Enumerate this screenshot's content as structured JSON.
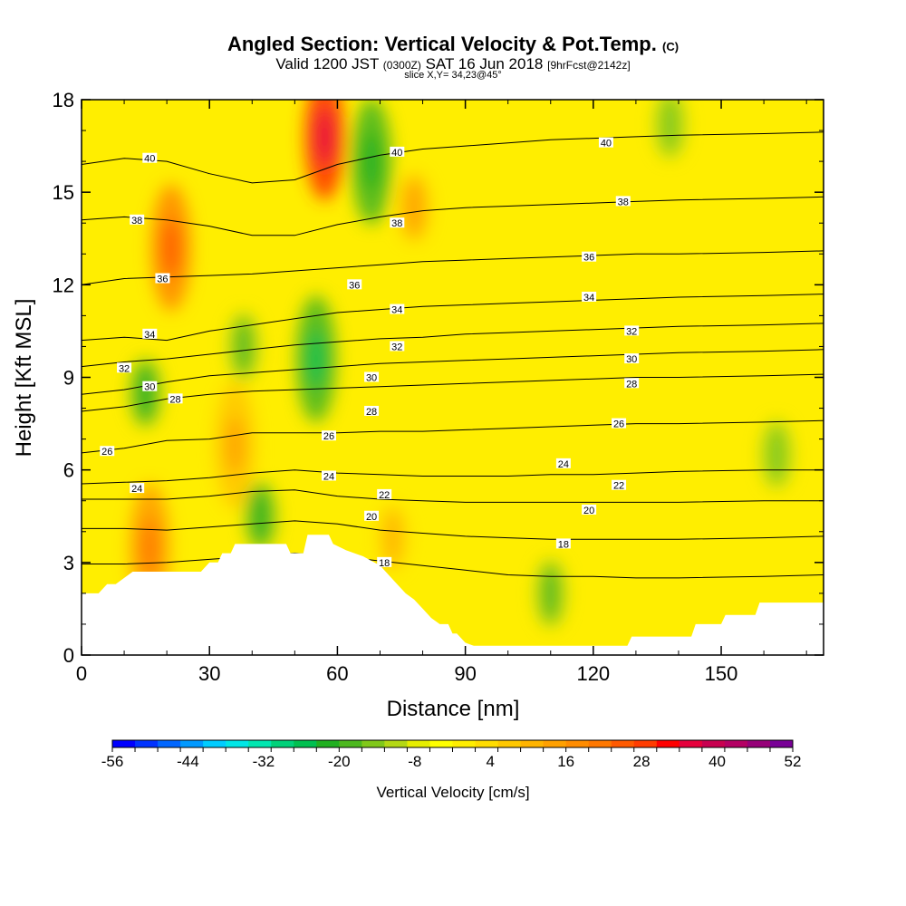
{
  "header": {
    "title_main": "Angled Section: Vertical Velocity & Pot.Temp.",
    "title_unit": "(C)",
    "valid_prefix": "Valid 1200 JST",
    "valid_utc": "(0300Z)",
    "valid_date": "SAT 16 Jun 2018",
    "forecast": "[9hrFcst@2142z]",
    "slice": "slice X,Y= 34,23@45°"
  },
  "chart_data": {
    "type": "heatmap",
    "subtype": "vertical cross-section with isentrope contours",
    "xlabel": "Distance [nm]",
    "ylabel": "Height [Kft MSL]",
    "xlim": [
      0,
      174
    ],
    "ylim": [
      0,
      18
    ],
    "x_ticks": [
      0,
      30,
      60,
      90,
      120,
      150
    ],
    "y_ticks": [
      0,
      3,
      6,
      9,
      12,
      15,
      18
    ],
    "colorbar": {
      "label": "Vertical Velocity [cm/s]",
      "min": -56,
      "max": 52,
      "step": 4,
      "tick_labels": [
        -56,
        -44,
        -32,
        -20,
        -8,
        4,
        16,
        28,
        40,
        52
      ],
      "colors": [
        "#0000ff",
        "#0033ff",
        "#0066ff",
        "#0099ff",
        "#00ccff",
        "#00e6e6",
        "#00e6b0",
        "#00d27a",
        "#00c050",
        "#20b020",
        "#4cb81e",
        "#80c81a",
        "#b4d814",
        "#e6ee00",
        "#ffff00",
        "#ffee00",
        "#ffdc00",
        "#ffc800",
        "#ffb400",
        "#ffa000",
        "#ff8c00",
        "#ff7800",
        "#ff5a00",
        "#ff3c00",
        "#ff0000",
        "#e6003c",
        "#c80050",
        "#b40064",
        "#960078",
        "#780096"
      ]
    },
    "terrain_profile": {
      "x": [
        0,
        4,
        6,
        8,
        10,
        12,
        28,
        30,
        32,
        33,
        35,
        36,
        38,
        40,
        48,
        49,
        52,
        53,
        58,
        59,
        62,
        66,
        70,
        72,
        74,
        76,
        78,
        80,
        82,
        84,
        86,
        87,
        88,
        90,
        92,
        128,
        129,
        143,
        144,
        150,
        151,
        158,
        159,
        174
      ],
      "height": [
        2.0,
        2.0,
        2.3,
        2.3,
        2.5,
        2.7,
        2.7,
        3.0,
        3.0,
        3.3,
        3.3,
        3.6,
        3.6,
        3.6,
        3.6,
        3.3,
        3.3,
        3.9,
        3.9,
        3.6,
        3.4,
        3.2,
        2.9,
        2.6,
        2.3,
        2.0,
        1.8,
        1.5,
        1.2,
        1.0,
        1.0,
        0.7,
        0.7,
        0.4,
        0.3,
        0.3,
        0.6,
        0.6,
        1.0,
        1.0,
        1.3,
        1.3,
        1.7,
        1.7
      ]
    },
    "velocity_features": [
      {
        "x": 57,
        "z": 16.8,
        "value": 36
      },
      {
        "x": 21,
        "z": 13.2,
        "value": 24
      },
      {
        "x": 16,
        "z": 3.5,
        "value": 20
      },
      {
        "x": 36,
        "z": 6.8,
        "value": 14
      },
      {
        "x": 55,
        "z": 9.6,
        "value": -16
      },
      {
        "x": 68,
        "z": 16.0,
        "value": -14
      },
      {
        "x": 15,
        "z": 8.5,
        "value": -12
      },
      {
        "x": 38,
        "z": 10.0,
        "value": -8
      },
      {
        "x": 42,
        "z": 4.5,
        "value": -12
      },
      {
        "x": 110,
        "z": 2.0,
        "value": -8
      },
      {
        "x": 163,
        "z": 6.5,
        "value": -6
      },
      {
        "x": 138,
        "z": 17.2,
        "value": -6
      },
      {
        "x": 73,
        "z": 3.8,
        "value": 10
      },
      {
        "x": 78,
        "z": 14.5,
        "value": 12
      }
    ],
    "isentropes": [
      {
        "value": 18,
        "z": [
          2.95,
          2.95,
          3.0,
          3.1,
          3.2,
          3.3,
          3.2,
          3.05,
          2.9,
          2.75,
          2.6,
          2.55,
          2.55,
          2.5,
          2.5,
          2.55,
          2.6
        ]
      },
      {
        "value": 20,
        "z": [
          4.1,
          4.1,
          4.05,
          4.15,
          4.25,
          4.35,
          4.25,
          4.05,
          3.95,
          3.85,
          3.8,
          3.75,
          3.75,
          3.75,
          3.75,
          3.8,
          3.85
        ]
      },
      {
        "value": 22,
        "z": [
          5.05,
          5.05,
          5.05,
          5.15,
          5.3,
          5.35,
          5.15,
          5.05,
          5.0,
          4.95,
          4.95,
          4.95,
          4.95,
          4.95,
          4.95,
          5.0,
          5.0
        ]
      },
      {
        "value": 24,
        "z": [
          5.55,
          5.6,
          5.65,
          5.75,
          5.9,
          6.0,
          5.9,
          5.85,
          5.8,
          5.8,
          5.8,
          5.85,
          5.85,
          5.9,
          5.95,
          6.0,
          6.0
        ]
      },
      {
        "value": 26,
        "z": [
          6.55,
          6.7,
          6.95,
          7.0,
          7.2,
          7.2,
          7.2,
          7.25,
          7.25,
          7.3,
          7.35,
          7.4,
          7.45,
          7.5,
          7.5,
          7.55,
          7.6
        ]
      },
      {
        "value": 28,
        "z": [
          7.9,
          8.05,
          8.3,
          8.45,
          8.55,
          8.6,
          8.65,
          8.7,
          8.75,
          8.8,
          8.85,
          8.9,
          8.95,
          9.0,
          9.0,
          9.05,
          9.1
        ]
      },
      {
        "value": 30,
        "z": [
          8.45,
          8.6,
          8.85,
          9.05,
          9.15,
          9.25,
          9.35,
          9.45,
          9.5,
          9.55,
          9.6,
          9.65,
          9.7,
          9.75,
          9.8,
          9.85,
          9.9
        ]
      },
      {
        "value": 32,
        "z": [
          9.35,
          9.5,
          9.6,
          9.75,
          9.9,
          10.05,
          10.15,
          10.25,
          10.3,
          10.4,
          10.45,
          10.5,
          10.55,
          10.6,
          10.65,
          10.7,
          10.75
        ]
      },
      {
        "value": 34,
        "z": [
          10.2,
          10.3,
          10.2,
          10.5,
          10.7,
          10.9,
          11.1,
          11.2,
          11.3,
          11.35,
          11.4,
          11.45,
          11.5,
          11.55,
          11.6,
          11.65,
          11.7
        ]
      },
      {
        "value": 36,
        "z": [
          12.0,
          12.2,
          12.25,
          12.3,
          12.35,
          12.45,
          12.55,
          12.65,
          12.75,
          12.8,
          12.85,
          12.9,
          12.95,
          13.0,
          13.0,
          13.05,
          13.1
        ]
      },
      {
        "value": 38,
        "z": [
          14.1,
          14.2,
          14.1,
          13.9,
          13.6,
          13.6,
          13.95,
          14.2,
          14.4,
          14.5,
          14.55,
          14.6,
          14.65,
          14.7,
          14.75,
          14.8,
          14.85
        ]
      },
      {
        "value": 40,
        "z": [
          15.9,
          16.1,
          16.0,
          15.6,
          15.3,
          15.4,
          15.9,
          16.2,
          16.4,
          16.5,
          16.6,
          16.7,
          16.75,
          16.8,
          16.85,
          16.9,
          16.95
        ]
      }
    ],
    "isentrope_x": [
      0,
      10,
      20,
      30,
      40,
      50,
      60,
      70,
      80,
      90,
      100,
      110,
      120,
      130,
      140,
      160,
      174
    ],
    "contour_labels": [
      {
        "text": "40",
        "x": 16,
        "z": 16.1
      },
      {
        "text": "40",
        "x": 74,
        "z": 16.3
      },
      {
        "text": "40",
        "x": 123,
        "z": 16.6
      },
      {
        "text": "38",
        "x": 13,
        "z": 14.1
      },
      {
        "text": "38",
        "x": 74,
        "z": 14.0
      },
      {
        "text": "38",
        "x": 127,
        "z": 14.7
      },
      {
        "text": "36",
        "x": 19,
        "z": 12.2
      },
      {
        "text": "36",
        "x": 64,
        "z": 12.0
      },
      {
        "text": "36",
        "x": 119,
        "z": 12.9
      },
      {
        "text": "34",
        "x": 16,
        "z": 10.4
      },
      {
        "text": "34",
        "x": 74,
        "z": 11.2
      },
      {
        "text": "34",
        "x": 119,
        "z": 11.6
      },
      {
        "text": "32",
        "x": 10,
        "z": 9.3
      },
      {
        "text": "32",
        "x": 74,
        "z": 10.0
      },
      {
        "text": "32",
        "x": 129,
        "z": 10.5
      },
      {
        "text": "30",
        "x": 16,
        "z": 8.7
      },
      {
        "text": "30",
        "x": 68,
        "z": 9.0
      },
      {
        "text": "30",
        "x": 129,
        "z": 9.6
      },
      {
        "text": "28",
        "x": 22,
        "z": 8.3
      },
      {
        "text": "28",
        "x": 68,
        "z": 7.9
      },
      {
        "text": "28",
        "x": 129,
        "z": 8.8
      },
      {
        "text": "26",
        "x": 6,
        "z": 6.6
      },
      {
        "text": "26",
        "x": 58,
        "z": 7.1
      },
      {
        "text": "26",
        "x": 126,
        "z": 7.5
      },
      {
        "text": "24",
        "x": 13,
        "z": 5.4
      },
      {
        "text": "24",
        "x": 58,
        "z": 5.8
      },
      {
        "text": "24",
        "x": 113,
        "z": 6.2
      },
      {
        "text": "22",
        "x": 71,
        "z": 5.2
      },
      {
        "text": "22",
        "x": 126,
        "z": 5.5
      },
      {
        "text": "20",
        "x": 68,
        "z": 4.5
      },
      {
        "text": "20",
        "x": 119,
        "z": 4.7
      },
      {
        "text": "18",
        "x": 71,
        "z": 3.0
      },
      {
        "text": "18",
        "x": 113,
        "z": 3.6
      }
    ]
  }
}
